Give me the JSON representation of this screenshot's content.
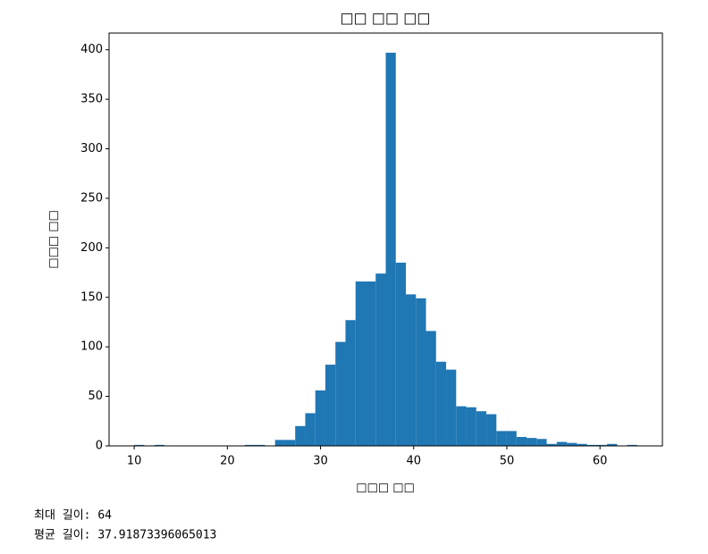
{
  "chart_data": {
    "type": "histogram",
    "title": "□□ □□ □□",
    "x_label": "□□□ □□",
    "y_label": "□□□ □□",
    "bins": [
      10,
      11.08,
      12.16,
      13.24,
      14.32,
      15.4,
      16.48,
      17.56,
      18.64,
      19.72,
      20.8,
      21.88,
      22.96,
      24.04,
      25.12,
      26.2,
      27.28,
      28.36,
      29.44,
      30.52,
      31.6,
      32.68,
      33.76,
      34.84,
      35.92,
      37,
      38.08,
      39.16,
      40.24,
      41.32,
      42.4,
      43.48,
      44.56,
      45.64,
      46.72,
      47.8,
      48.88,
      49.96,
      51.04,
      52.12,
      53.2,
      54.28,
      55.36,
      56.44,
      57.52,
      58.6,
      59.68,
      60.76,
      61.84,
      62.92,
      64
    ],
    "values": [
      1,
      0,
      1,
      0,
      0,
      0,
      0,
      0,
      0,
      0,
      0,
      1,
      1,
      0,
      6,
      6,
      20,
      33,
      56,
      82,
      105,
      127,
      166,
      166,
      174,
      397,
      185,
      153,
      149,
      116,
      85,
      77,
      40,
      39,
      35,
      32,
      15,
      15,
      9,
      8,
      7,
      2,
      4,
      3,
      2,
      1,
      1,
      2,
      0,
      1
    ],
    "color": "#1f77b4",
    "xlim": [
      7.3,
      66.7
    ],
    "xticks": [
      10,
      20,
      30,
      40,
      50,
      60
    ],
    "ylim": [
      0,
      416.85
    ],
    "yticks": [
      0,
      50,
      100,
      150,
      200,
      250,
      300,
      350,
      400
    ]
  },
  "output_lines": [
    "최대 길이: 64",
    "평균 길이: 37.91873396065013"
  ]
}
